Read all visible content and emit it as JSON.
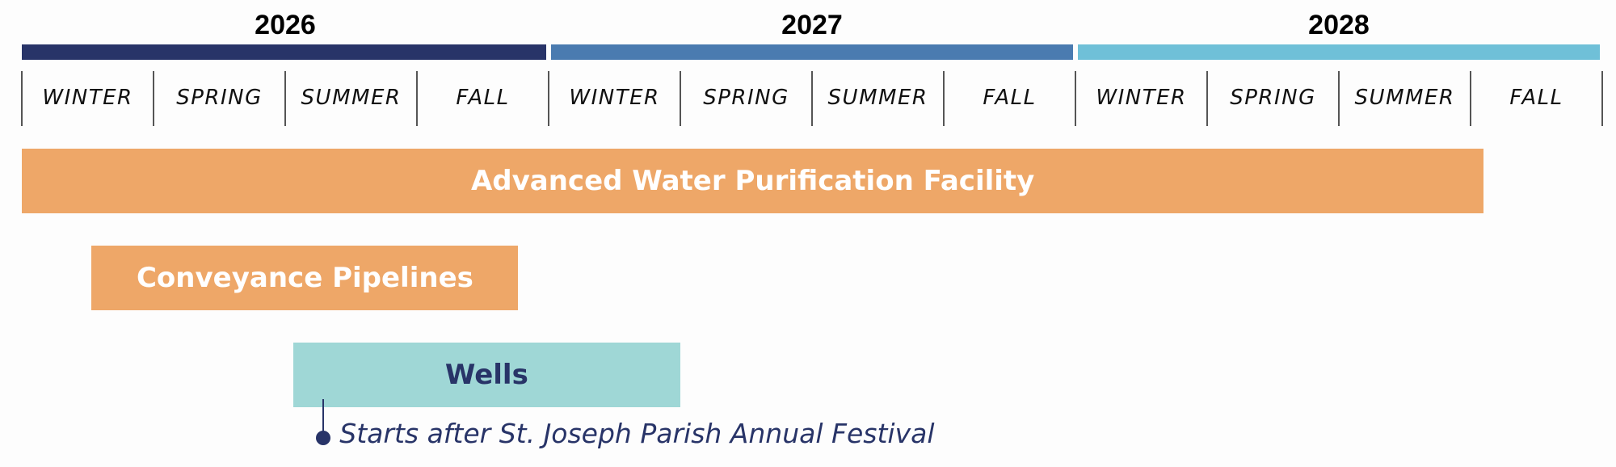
{
  "chart_data": {
    "type": "gantt",
    "years": [
      {
        "label": "2026",
        "color": "#283468"
      },
      {
        "label": "2027",
        "color": "#4a7bb0"
      },
      {
        "label": "2028",
        "color": "#6fc0d8"
      }
    ],
    "seasons": [
      "WINTER",
      "SPRING",
      "SUMMER",
      "FALL"
    ],
    "tasks": [
      {
        "name": "Advanced Water Purification Facility",
        "start": 0,
        "end": 11.1,
        "color": "#eea768",
        "text_color": "#ffffff"
      },
      {
        "name": "Conveyance Pipelines",
        "start": 0.53,
        "end": 3.77,
        "color": "#eea768",
        "text_color": "#ffffff"
      },
      {
        "name": "Wells",
        "start": 2.06,
        "end": 5.0,
        "color": "#9fd7d6",
        "text_color": "#283468"
      }
    ],
    "annotation": {
      "text": "Starts after St. Joseph Parish Annual Festival",
      "task": 2,
      "at": 2.29
    }
  }
}
